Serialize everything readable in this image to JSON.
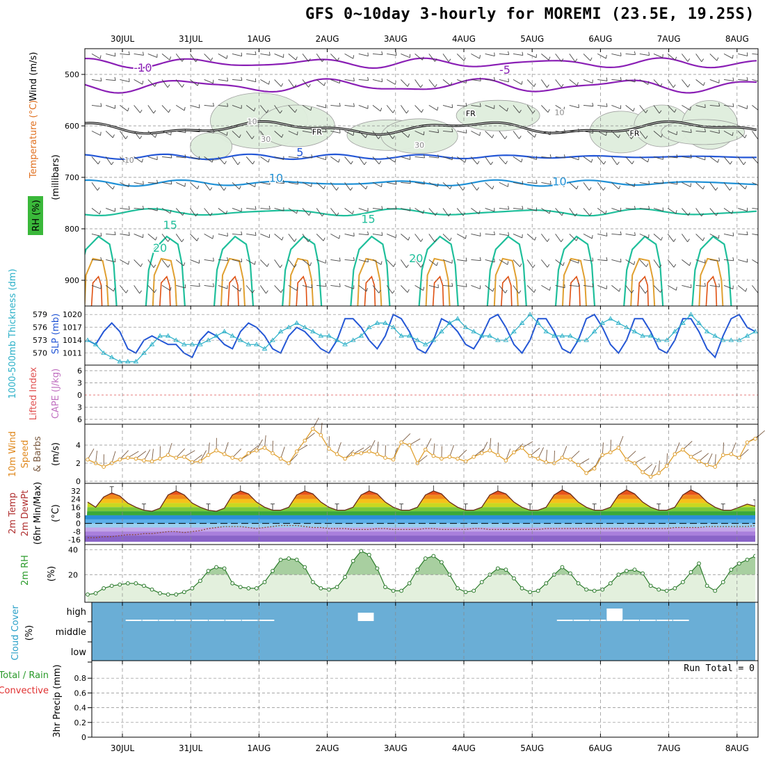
{
  "title": "GFS 0~10day 3-hourly for MOREMI (23.5E, 19.25S)",
  "dates": [
    "30JUL",
    "31JUL",
    "1AUG",
    "2AUG",
    "3AUG",
    "4AUG",
    "5AUG",
    "6AUG",
    "7AUG",
    "8AUG"
  ],
  "run_total": "Run Total = 0",
  "colors": {
    "purple": "#8a1fb5",
    "blue": "#2457d6",
    "lightblue": "#1e90d6",
    "teal": "#1fbf9b",
    "orange": "#e0a030",
    "green": "#3a9a3a",
    "sky": "#6aaed6"
  },
  "chart_data": [
    {
      "type": "contour",
      "panel": "upper-air",
      "ylabel_parts": [
        "Wind (m/s)",
        "Temperature (°C)",
        "RH (%)"
      ],
      "yaxis_label": "(millibars)",
      "yticks": [
        500,
        600,
        700,
        800,
        900
      ],
      "ylim": [
        450,
        950
      ],
      "contour_labels": [
        {
          "text": "-10",
          "date_index": 0.3,
          "p": 488
        },
        {
          "text": "-5",
          "date_index": 5.6,
          "p": 492
        },
        {
          "text": "FR",
          "date_index": 5.1,
          "p": 574
        },
        {
          "text": "FR",
          "date_index": 2.85,
          "p": 610
        },
        {
          "text": "FR",
          "date_index": 7.5,
          "p": 613
        },
        {
          "text": "5",
          "date_index": 2.6,
          "p": 652
        },
        {
          "text": "10",
          "date_index": 2.25,
          "p": 702
        },
        {
          "text": "10",
          "date_index": 6.4,
          "p": 709
        },
        {
          "text": "15",
          "date_index": 0.7,
          "p": 793
        },
        {
          "text": "15",
          "date_index": 3.6,
          "p": 782
        },
        {
          "text": "20",
          "date_index": 0.55,
          "p": 838
        },
        {
          "text": "20",
          "date_index": 4.3,
          "p": 858
        },
        {
          "text": "10",
          "date_index": 1.9,
          "p": 590
        },
        {
          "text": "10",
          "date_index": 6.4,
          "p": 572
        },
        {
          "text": "30",
          "date_index": 2.1,
          "p": 624
        },
        {
          "text": "30",
          "date_index": 4.35,
          "p": 636
        },
        {
          "text": "10",
          "date_index": 0.1,
          "p": 665
        }
      ]
    },
    {
      "type": "line",
      "panel": "pressure-thickness",
      "ylabel_left": "1000-500mb Thickness (dm)",
      "ylabel_right": "SLP (mb)",
      "yticks_left": [
        570,
        573,
        576,
        579
      ],
      "yticks_right": [
        1011,
        1014,
        1017,
        1020
      ],
      "ylim_slp": [
        1009,
        1021
      ],
      "series": [
        {
          "name": "SLP (mb)",
          "values": [
            1014,
            1013,
            1016,
            1018,
            1016,
            1012,
            1011,
            1014,
            1015,
            1014,
            1013,
            1013,
            1011,
            1010,
            1014,
            1016,
            1015,
            1013,
            1012,
            1016,
            1018,
            1017,
            1015,
            1012,
            1011,
            1015,
            1017,
            1016,
            1014,
            1012,
            1011,
            1014,
            1019,
            1019,
            1017,
            1014,
            1012,
            1015,
            1020,
            1019,
            1016,
            1012,
            1011,
            1014,
            1019,
            1018,
            1016,
            1013,
            1012,
            1015,
            1019,
            1020,
            1017,
            1013,
            1011,
            1014,
            1019,
            1019,
            1016,
            1012,
            1011,
            1014,
            1019,
            1020,
            1017,
            1013,
            1011,
            1014,
            1019,
            1019,
            1016,
            1012,
            1011,
            1014,
            1019,
            1019,
            1016,
            1012,
            1010,
            1015,
            1019,
            1020,
            1017,
            1016
          ]
        },
        {
          "name": "1000-500mb Thickness (dm)",
          "values": [
            1014,
            1013,
            1011,
            1010,
            1009,
            1009,
            1009,
            1011,
            1013,
            1015,
            1015,
            1014,
            1013,
            1013,
            1013,
            1014,
            1015,
            1016,
            1015,
            1014,
            1013,
            1013,
            1012,
            1014,
            1016,
            1017,
            1018,
            1017,
            1016,
            1015,
            1015,
            1014,
            1013,
            1014,
            1015,
            1017,
            1018,
            1018,
            1017,
            1015,
            1015,
            1014,
            1013,
            1014,
            1016,
            1018,
            1019,
            1017,
            1016,
            1015,
            1015,
            1014,
            1014,
            1016,
            1018,
            1020,
            1018,
            1016,
            1015,
            1015,
            1015,
            1014,
            1014,
            1016,
            1018,
            1019,
            1018,
            1017,
            1016,
            1015,
            1015,
            1014,
            1014,
            1016,
            1018,
            1020,
            1018,
            1016,
            1015,
            1014,
            1014,
            1014,
            1015,
            1016
          ]
        }
      ]
    },
    {
      "type": "line",
      "panel": "stability",
      "ylabel_parts": [
        "Lifted Index",
        "CAPE (J/kg)"
      ],
      "yticks": [
        "6",
        "3",
        "0",
        "3",
        "6"
      ],
      "series": [
        {
          "name": "Lifted Index",
          "values": []
        },
        {
          "name": "CAPE (J/kg)",
          "values": []
        }
      ]
    },
    {
      "type": "line",
      "panel": "surface-wind",
      "ylabel_parts": [
        "10m Wind",
        "Speed",
        "& Barbs"
      ],
      "yaxis_label": "(m/s)",
      "yticks": [
        0,
        2,
        4
      ],
      "ylim": [
        0,
        6
      ],
      "series": [
        {
          "name": "10m Wind Speed (m/s)",
          "values": [
            2.4,
            2.0,
            1.6,
            2.0,
            2.4,
            2.6,
            2.5,
            2.3,
            2.2,
            2.5,
            2.9,
            2.6,
            2.7,
            2.1,
            2.2,
            2.9,
            3.4,
            3.0,
            2.6,
            2.4,
            3.1,
            3.4,
            3.7,
            3.1,
            2.5,
            2.0,
            3.3,
            4.5,
            5.8,
            5.1,
            3.6,
            3.0,
            2.5,
            3.0,
            3.1,
            3.3,
            3.0,
            2.6,
            2.4,
            4.3,
            4.0,
            2.0,
            3.5,
            2.8,
            2.5,
            2.7,
            2.5,
            2.2,
            2.7,
            3.1,
            3.4,
            2.9,
            2.3,
            3.2,
            3.7,
            2.8,
            2.5,
            2.1,
            2.0,
            2.6,
            2.4,
            1.8,
            0.9,
            1.4,
            2.9,
            3.2,
            3.7,
            2.4,
            2.0,
            1.0,
            0.5,
            0.9,
            1.7,
            3.0,
            3.5,
            2.7,
            2.2,
            1.8,
            1.6,
            2.9,
            3.0,
            2.6,
            4.3,
            4.7
          ]
        }
      ]
    },
    {
      "type": "area",
      "panel": "temperature",
      "ylabel_parts": [
        "2m Temp",
        "2m DewPt",
        "(6hr Min/Max)"
      ],
      "yaxis_label": "(°C)",
      "yticks": [
        32,
        24,
        16,
        8,
        0,
        -8,
        -16
      ],
      "ylim": [
        -18,
        36
      ],
      "series": [
        {
          "name": "2m Temp (°C)",
          "values": [
            21,
            16,
            26,
            30,
            27,
            20,
            16,
            13,
            12,
            15,
            28,
            32,
            28,
            20,
            16,
            13,
            12,
            15,
            28,
            32,
            29,
            21,
            16,
            13,
            13,
            16,
            28,
            32,
            29,
            21,
            16,
            13,
            13,
            16,
            28,
            32,
            29,
            21,
            16,
            13,
            13,
            16,
            28,
            32,
            29,
            21,
            16,
            13,
            13,
            16,
            28,
            32,
            29,
            21,
            16,
            13,
            13,
            16,
            28,
            33,
            29,
            21,
            16,
            13,
            13,
            16,
            28,
            33,
            29,
            21,
            16,
            13,
            13,
            16,
            28,
            33,
            29,
            21,
            16,
            13,
            13,
            16,
            19,
            17
          ]
        },
        {
          "name": "2m DewPt (°C)",
          "values": [
            -14,
            -14,
            -13,
            -13,
            -12,
            -11,
            -11,
            -10,
            -10,
            -9,
            -8,
            -8,
            -9,
            -8,
            -7,
            -5,
            -4,
            -3,
            -3,
            -3,
            -4,
            -5,
            -4,
            -3,
            -2,
            -2,
            -2,
            -3,
            -4,
            -4,
            -5,
            -5,
            -5,
            -6,
            -6,
            -6,
            -5,
            -5,
            -6,
            -6,
            -6,
            -6,
            -5,
            -5,
            -6,
            -6,
            -6,
            -6,
            -5,
            -5,
            -6,
            -6,
            -6,
            -6,
            -6,
            -6,
            -6,
            -5,
            -5,
            -5,
            -5,
            -5,
            -5,
            -5,
            -5,
            -5,
            -5,
            -5,
            -5,
            -5,
            -5,
            -5,
            -5,
            -4,
            -4,
            -4,
            -4,
            -3,
            -3,
            -3,
            -3,
            -3,
            -3,
            -2
          ]
        }
      ]
    },
    {
      "type": "area",
      "panel": "relative-humidity",
      "ylabel_parts": [
        "2m RH"
      ],
      "yaxis_label": "(%)",
      "yticks": [
        20,
        40
      ],
      "ylim": [
        0,
        42
      ],
      "series": [
        {
          "name": "2m RH (%)",
          "values": [
            4,
            5,
            9,
            11,
            12,
            13,
            13,
            11,
            8,
            5,
            4,
            4,
            6,
            9,
            15,
            23,
            26,
            25,
            13,
            10,
            9,
            9,
            14,
            23,
            32,
            33,
            32,
            26,
            14,
            9,
            8,
            10,
            18,
            31,
            39,
            36,
            25,
            10,
            7,
            7,
            13,
            24,
            33,
            35,
            30,
            20,
            9,
            6,
            7,
            14,
            20,
            25,
            24,
            17,
            9,
            6,
            7,
            13,
            20,
            26,
            21,
            13,
            8,
            7,
            8,
            13,
            20,
            23,
            24,
            21,
            11,
            8,
            7,
            9,
            14,
            22,
            29,
            11,
            7,
            14,
            24,
            29,
            32,
            35
          ]
        }
      ]
    },
    {
      "type": "bar",
      "panel": "cloud-cover",
      "ylabel_parts": [
        "Cloud Cover"
      ],
      "yaxis_label": "(%)",
      "yticks": [
        "high",
        "middle",
        "low"
      ],
      "series": [
        {
          "name": "high cloud (%)",
          "values": [
            0,
            0,
            4,
            4,
            6,
            6,
            4,
            4,
            4,
            4,
            4,
            0,
            0,
            0,
            0,
            0,
            60,
            0,
            0,
            0,
            0,
            0,
            0,
            0,
            0,
            0,
            0,
            0,
            4,
            4,
            6,
            90,
            4,
            4,
            4,
            4,
            0,
            0,
            0,
            0
          ]
        }
      ]
    },
    {
      "type": "bar",
      "panel": "precipitation",
      "ylabel_parts": [
        "Total / Rain",
        "Convective",
        "3hr Precip (mm)"
      ],
      "yticks": [
        0,
        0.2,
        0.4,
        0.6,
        0.8
      ],
      "ylim": [
        0,
        1
      ],
      "series": [
        {
          "name": "3hr Precip (mm)",
          "values": []
        }
      ]
    }
  ]
}
